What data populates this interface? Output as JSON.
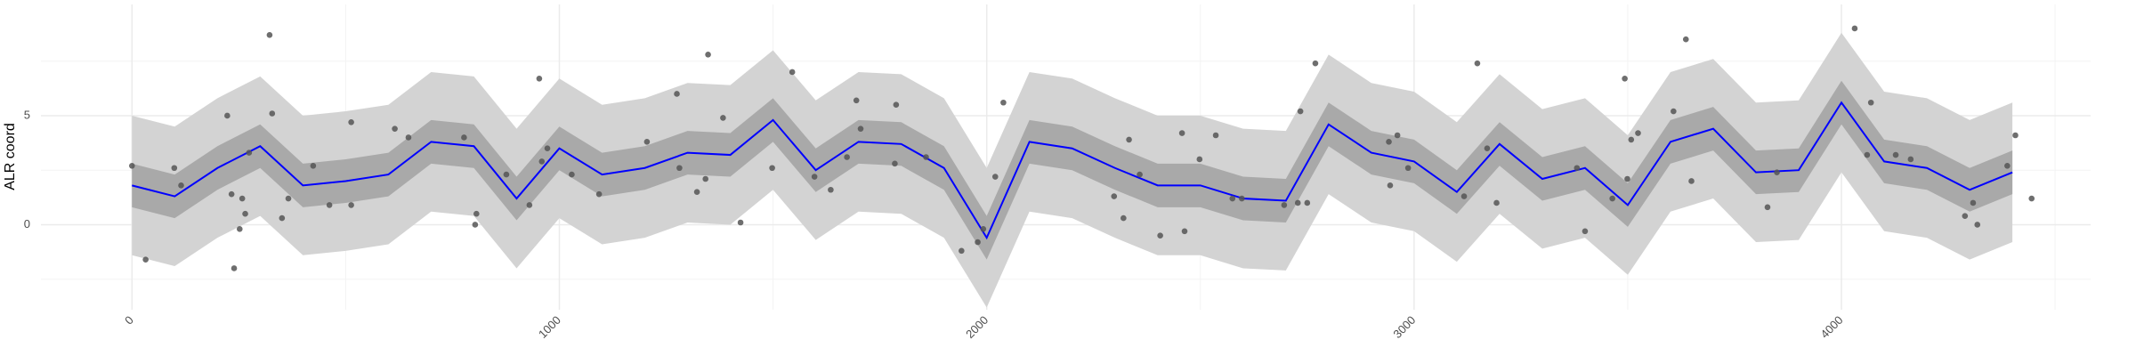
{
  "chart_data": {
    "type": "gp-ribbon",
    "y_label": "ALR coord",
    "x": [
      0,
      100,
      200,
      300,
      400,
      500,
      600,
      700,
      800,
      900,
      1000,
      1100,
      1200,
      1300,
      1400,
      1500,
      1600,
      1700,
      1800,
      1900,
      2000,
      2100,
      2200,
      2300,
      2400,
      2500,
      2600,
      2700,
      2800,
      2900,
      3000,
      3100,
      3200,
      3300,
      3400,
      3500,
      3600,
      3700,
      3800,
      3900,
      4000,
      4100,
      4200,
      4300,
      4400
    ],
    "line": {
      "color": "#0000ff",
      "values": [
        1.8,
        1.3,
        2.6,
        3.6,
        1.8,
        2.0,
        2.3,
        3.8,
        3.6,
        1.2,
        3.5,
        2.3,
        2.6,
        3.3,
        3.2,
        4.8,
        2.5,
        3.8,
        3.7,
        2.6,
        -0.6,
        3.8,
        3.5,
        2.6,
        1.8,
        1.8,
        1.2,
        1.1,
        4.6,
        3.3,
        2.9,
        1.5,
        3.7,
        2.1,
        2.6,
        0.9,
        3.8,
        4.4,
        2.4,
        2.5,
        5.6,
        2.9,
        2.6,
        1.6,
        2.4
      ]
    },
    "bands": [
      {
        "color": "#d3d3d3",
        "lower": [
          -1.4,
          -1.9,
          -0.6,
          0.4,
          -1.4,
          -1.2,
          -0.9,
          0.6,
          0.4,
          -2.0,
          0.3,
          -0.9,
          -0.6,
          0.1,
          0.0,
          1.6,
          -0.7,
          0.6,
          0.5,
          -0.6,
          -3.8,
          0.6,
          0.3,
          -0.6,
          -1.4,
          -1.4,
          -2.0,
          -2.1,
          1.4,
          0.1,
          -0.3,
          -1.7,
          0.5,
          -1.1,
          -0.6,
          -2.3,
          0.6,
          1.2,
          -0.8,
          -0.7,
          2.4,
          -0.3,
          -0.6,
          -1.6,
          -0.8
        ],
        "upper": [
          5.0,
          4.5,
          5.8,
          6.8,
          5.0,
          5.2,
          5.5,
          7.0,
          6.8,
          4.4,
          6.7,
          5.5,
          5.8,
          6.5,
          6.4,
          8.0,
          5.7,
          7.0,
          6.9,
          5.8,
          2.6,
          7.0,
          6.7,
          5.8,
          5.0,
          5.0,
          4.4,
          4.3,
          7.8,
          6.5,
          6.1,
          4.7,
          6.9,
          5.3,
          5.8,
          4.1,
          7.0,
          7.6,
          5.6,
          5.7,
          8.8,
          6.1,
          5.8,
          4.8,
          5.6
        ]
      },
      {
        "color": "#a9a9a9",
        "lower": [
          0.8,
          0.3,
          1.6,
          2.6,
          0.8,
          1.0,
          1.3,
          2.8,
          2.6,
          0.2,
          2.5,
          1.3,
          1.6,
          2.3,
          2.2,
          3.8,
          1.5,
          2.8,
          2.7,
          1.6,
          -1.6,
          2.8,
          2.5,
          1.6,
          0.8,
          0.8,
          0.2,
          0.1,
          3.6,
          2.3,
          1.9,
          0.5,
          2.7,
          1.1,
          1.6,
          -0.1,
          2.8,
          3.4,
          1.4,
          1.5,
          4.6,
          1.9,
          1.6,
          0.6,
          1.4
        ],
        "upper": [
          2.8,
          2.3,
          3.6,
          4.6,
          2.8,
          3.0,
          3.3,
          4.8,
          4.6,
          2.2,
          4.5,
          3.3,
          3.6,
          4.3,
          4.2,
          5.8,
          3.5,
          4.8,
          4.7,
          3.6,
          0.4,
          4.8,
          4.5,
          3.6,
          2.8,
          2.8,
          2.2,
          2.1,
          5.6,
          4.3,
          3.9,
          2.5,
          4.7,
          3.1,
          3.6,
          1.9,
          4.8,
          5.4,
          3.4,
          3.5,
          6.6,
          3.9,
          3.6,
          2.6,
          3.4
        ]
      }
    ],
    "points": {
      "color": "#555555",
      "x": [
        0,
        32,
        99,
        115,
        223,
        233,
        239,
        252,
        258,
        265,
        274,
        322,
        328,
        351,
        366,
        424,
        462,
        513,
        513,
        615,
        647,
        777,
        803,
        806,
        876,
        930,
        953,
        959,
        972,
        1029,
        1093,
        1205,
        1275,
        1281,
        1322,
        1342,
        1348,
        1383,
        1424,
        1498,
        1545,
        1597,
        1635,
        1673,
        1695,
        1705,
        1785,
        1788,
        1858,
        1941,
        1979,
        1992,
        2020,
        2039,
        2298,
        2320,
        2333,
        2358,
        2406,
        2457,
        2463,
        2498,
        2536,
        2575,
        2597,
        2696,
        2728,
        2734,
        2750,
        2769,
        2941,
        2944,
        2961,
        2986,
        3117,
        3148,
        3171,
        3193,
        3381,
        3400,
        3464,
        3493,
        3499,
        3508,
        3524,
        3607,
        3636,
        3649,
        3827,
        3849,
        4031,
        4060,
        4069,
        4127,
        4162,
        4289,
        4318,
        4308,
        4388,
        4407,
        4445
      ],
      "y": [
        2.7,
        -1.6,
        2.6,
        1.8,
        5.0,
        1.4,
        -2.0,
        -0.2,
        1.2,
        0.5,
        3.3,
        8.7,
        5.1,
        0.3,
        1.2,
        2.7,
        0.9,
        4.7,
        0.9,
        4.4,
        4.0,
        4.0,
        0,
        0.5,
        2.3,
        0.9,
        6.7,
        2.9,
        3.5,
        2.3,
        1.4,
        3.8,
        6.0,
        2.6,
        1.5,
        2.1,
        7.8,
        4.9,
        0.1,
        2.6,
        7.0,
        2.2,
        1.6,
        3.1,
        5.7,
        4.4,
        2.8,
        5.5,
        3.1,
        -1.2,
        -0.8,
        -0.2,
        2.2,
        5.6,
        1.3,
        0.3,
        3.9,
        2.3,
        -0.5,
        4.2,
        -0.3,
        3.0,
        4.1,
        1.2,
        1.2,
        0.9,
        1.0,
        5.2,
        1.0,
        7.4,
        3.8,
        1.8,
        4.1,
        2.6,
        1.3,
        7.4,
        3.5,
        1.0,
        2.6,
        -0.3,
        1.2,
        6.7,
        2.1,
        3.9,
        4.2,
        5.2,
        8.5,
        2.0,
        0.8,
        2.4,
        9.0,
        3.2,
        5.6,
        3.2,
        3.0,
        0.4,
        0,
        1.0,
        2.7,
        4.1,
        1.2
      ]
    },
    "xlim": [
      -213,
      4583
    ],
    "ylim": [
      -3.9,
      10.1
    ],
    "xticks": [
      0,
      1000,
      2000,
      3000,
      4000
    ],
    "yticks": [
      0,
      5
    ],
    "xminor": [
      500,
      1500,
      2500,
      3500,
      4500
    ],
    "yminor": [
      -2.5,
      2.5,
      7.5
    ],
    "grid": true
  }
}
